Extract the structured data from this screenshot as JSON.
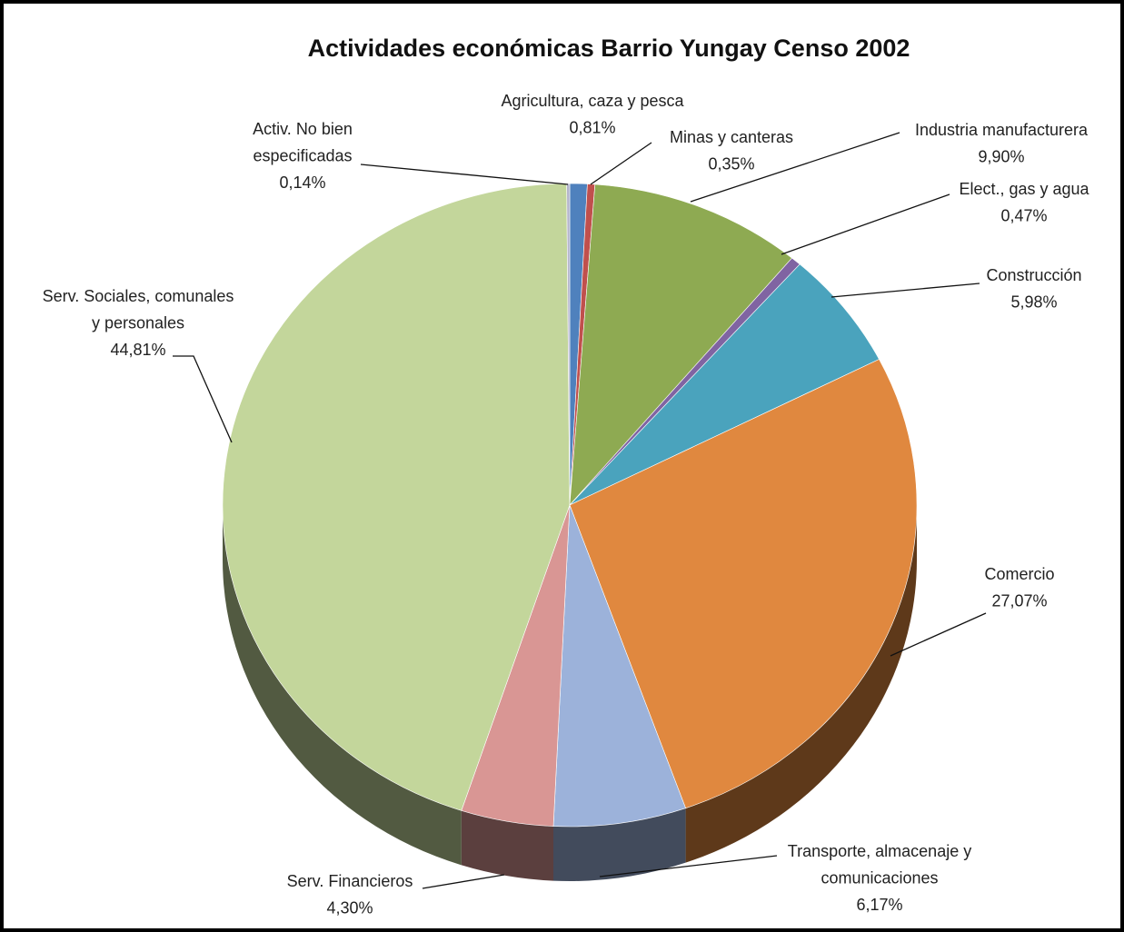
{
  "chart_data": {
    "type": "pie",
    "title": "Actividades económicas Barrio Yungay Censo 2002",
    "categories": [
      "Agricultura, caza y pesca",
      "Minas y canteras",
      "Industria manufacturera",
      "Elect., gas y agua",
      "Construcción",
      "Comercio",
      "Transporte, almacenaje y\ncomunicaciones",
      "Serv. Financieros",
      "Serv. Sociales, comunales\ny personales",
      "Activ. No bien\nespecificadas"
    ],
    "values": [
      0.81,
      0.35,
      9.9,
      0.47,
      5.98,
      27.07,
      6.17,
      4.3,
      44.81,
      0.14
    ],
    "value_labels": [
      "0,81%",
      "0,35%",
      "9,90%",
      "0,47%",
      "5,98%",
      "27,07%",
      "6,17%",
      "4,30%",
      "44,81%",
      "0,14%"
    ],
    "colors": [
      "#4f81bd",
      "#c0504d",
      "#8eaa52",
      "#8064a2",
      "#4aa3bd",
      "#e0883f",
      "#9cb2da",
      "#d99694",
      "#c3d69b",
      "#b4b4cc"
    ]
  }
}
